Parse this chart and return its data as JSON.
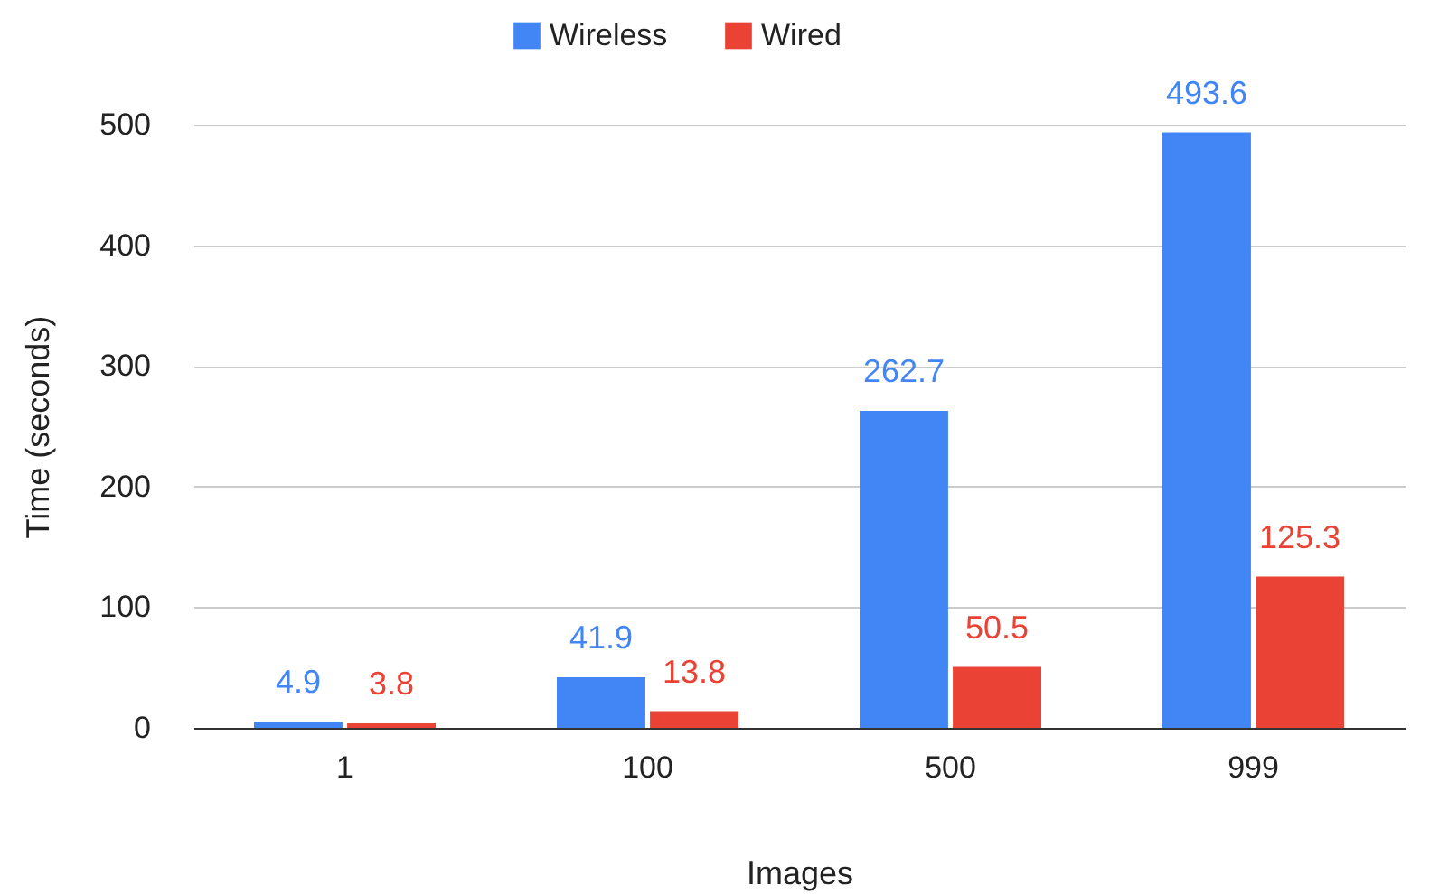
{
  "chart_data": {
    "type": "bar",
    "xlabel": "Images",
    "ylabel": "Time (seconds)",
    "categories": [
      "1",
      "100",
      "500",
      "999"
    ],
    "series": [
      {
        "name": "Wireless",
        "color": "#4285f4",
        "values": [
          4.9,
          41.9,
          262.7,
          493.6
        ]
      },
      {
        "name": "Wired",
        "color": "#ea4335",
        "values": [
          3.8,
          13.8,
          50.5,
          125.3
        ]
      }
    ],
    "ylim": [
      0,
      500
    ],
    "yticks": [
      0,
      100,
      200,
      300,
      400,
      500
    ],
    "grid": "y",
    "legend": "top",
    "data_labels": true
  }
}
